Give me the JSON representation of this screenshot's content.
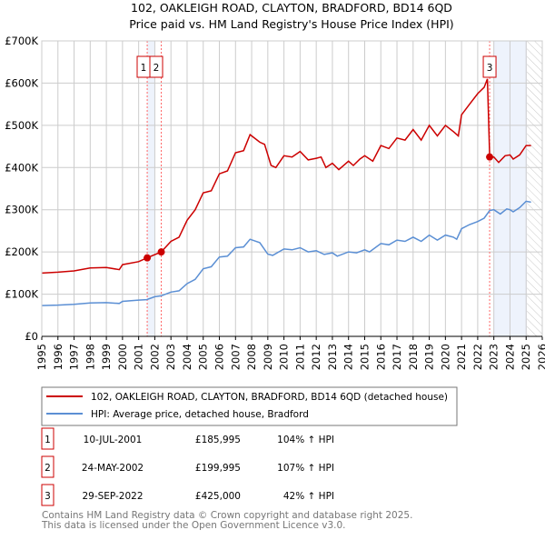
{
  "chart_data": {
    "type": "line",
    "title": "102, OAKLEIGH ROAD, CLAYTON, BRADFORD, BD14 6QD",
    "subtitle": "Price paid vs. HM Land Registry's House Price Index (HPI)",
    "xlim": [
      1995,
      2026
    ],
    "ylim": [
      0,
      700000
    ],
    "x_ticks": [
      "1995",
      "1996",
      "1997",
      "1998",
      "1999",
      "2000",
      "2001",
      "2002",
      "2003",
      "2004",
      "2005",
      "2006",
      "2007",
      "2008",
      "2009",
      "2010",
      "2011",
      "2012",
      "2013",
      "2014",
      "2015",
      "2016",
      "2017",
      "2018",
      "2019",
      "2020",
      "2021",
      "2022",
      "2023",
      "2024",
      "2025",
      "2026"
    ],
    "y_ticks": [
      {
        "v": 0,
        "label": "£0"
      },
      {
        "v": 100000,
        "label": "£100K"
      },
      {
        "v": 200000,
        "label": "£200K"
      },
      {
        "v": 300000,
        "label": "£300K"
      },
      {
        "v": 400000,
        "label": "£400K"
      },
      {
        "v": 500000,
        "label": "£500K"
      },
      {
        "v": 600000,
        "label": "£600K"
      },
      {
        "v": 700000,
        "label": "£700K"
      }
    ],
    "grid": true,
    "legend_placement": "below",
    "colors": {
      "property": "#cc0000",
      "hpi": "#5b8fd4",
      "shade": "#eef3fc",
      "marker_line": "#ff6666"
    },
    "series": [
      {
        "name": "102, OAKLEIGH ROAD, CLAYTON, BRADFORD, BD14 6QD (detached house)",
        "unit": "£K",
        "points": [
          [
            1995,
            150
          ],
          [
            1996,
            152
          ],
          [
            1997,
            155
          ],
          [
            1998,
            162
          ],
          [
            1999,
            163
          ],
          [
            1999.8,
            158
          ],
          [
            2000,
            170
          ],
          [
            2001,
            177
          ],
          [
            2001.53,
            186
          ],
          [
            2002.4,
            200
          ],
          [
            2003,
            225
          ],
          [
            2003.5,
            235
          ],
          [
            2004,
            275
          ],
          [
            2004.5,
            300
          ],
          [
            2005,
            340
          ],
          [
            2005.5,
            345
          ],
          [
            2006,
            385
          ],
          [
            2006.5,
            392
          ],
          [
            2007,
            435
          ],
          [
            2007.5,
            440
          ],
          [
            2007.9,
            478
          ],
          [
            2008.5,
            460
          ],
          [
            2008.8,
            455
          ],
          [
            2009.2,
            405
          ],
          [
            2009.5,
            400
          ],
          [
            2010,
            428
          ],
          [
            2010.5,
            425
          ],
          [
            2011,
            438
          ],
          [
            2011.5,
            418
          ],
          [
            2012,
            422
          ],
          [
            2012.3,
            425
          ],
          [
            2012.6,
            400
          ],
          [
            2013,
            410
          ],
          [
            2013.4,
            395
          ],
          [
            2014,
            415
          ],
          [
            2014.3,
            405
          ],
          [
            2014.7,
            420
          ],
          [
            2015,
            428
          ],
          [
            2015.5,
            415
          ],
          [
            2016,
            452
          ],
          [
            2016.5,
            445
          ],
          [
            2017,
            470
          ],
          [
            2017.5,
            465
          ],
          [
            2018,
            490
          ],
          [
            2018.5,
            465
          ],
          [
            2019,
            500
          ],
          [
            2019.5,
            475
          ],
          [
            2020,
            500
          ],
          [
            2020.5,
            485
          ],
          [
            2020.8,
            475
          ],
          [
            2021,
            525
          ],
          [
            2021.5,
            550
          ],
          [
            2022,
            575
          ],
          [
            2022.4,
            590
          ],
          [
            2022.6,
            610
          ],
          [
            2022.74,
            425
          ],
          [
            2023,
            425
          ],
          [
            2023.3,
            412
          ],
          [
            2023.7,
            428
          ],
          [
            2024,
            430
          ],
          [
            2024.2,
            420
          ],
          [
            2024.6,
            430
          ],
          [
            2025,
            452
          ],
          [
            2025.3,
            452
          ]
        ]
      },
      {
        "name": "HPI: Average price, detached house, Bradford",
        "unit": "£K",
        "points": [
          [
            1995,
            73
          ],
          [
            1996,
            74
          ],
          [
            1997,
            76
          ],
          [
            1998,
            79
          ],
          [
            1999,
            80
          ],
          [
            1999.8,
            78
          ],
          [
            2000,
            83
          ],
          [
            2001,
            86
          ],
          [
            2001.5,
            87
          ],
          [
            2002,
            94
          ],
          [
            2002.4,
            96
          ],
          [
            2003,
            105
          ],
          [
            2003.5,
            108
          ],
          [
            2004,
            125
          ],
          [
            2004.5,
            135
          ],
          [
            2005,
            160
          ],
          [
            2005.5,
            165
          ],
          [
            2006,
            188
          ],
          [
            2006.5,
            190
          ],
          [
            2007,
            210
          ],
          [
            2007.5,
            212
          ],
          [
            2007.9,
            230
          ],
          [
            2008.5,
            222
          ],
          [
            2009,
            195
          ],
          [
            2009.3,
            192
          ],
          [
            2010,
            207
          ],
          [
            2010.5,
            205
          ],
          [
            2011,
            210
          ],
          [
            2011.5,
            200
          ],
          [
            2012,
            203
          ],
          [
            2012.5,
            194
          ],
          [
            2013,
            198
          ],
          [
            2013.3,
            190
          ],
          [
            2014,
            200
          ],
          [
            2014.5,
            198
          ],
          [
            2015,
            205
          ],
          [
            2015.3,
            200
          ],
          [
            2016,
            220
          ],
          [
            2016.5,
            217
          ],
          [
            2017,
            228
          ],
          [
            2017.5,
            225
          ],
          [
            2018,
            235
          ],
          [
            2018.5,
            225
          ],
          [
            2019,
            240
          ],
          [
            2019.5,
            228
          ],
          [
            2020,
            240
          ],
          [
            2020.5,
            235
          ],
          [
            2020.7,
            230
          ],
          [
            2021,
            255
          ],
          [
            2021.5,
            265
          ],
          [
            2022,
            272
          ],
          [
            2022.4,
            280
          ],
          [
            2022.74,
            298
          ],
          [
            2023,
            300
          ],
          [
            2023.4,
            290
          ],
          [
            2023.8,
            302
          ],
          [
            2024,
            300
          ],
          [
            2024.2,
            295
          ],
          [
            2024.6,
            305
          ],
          [
            2025,
            320
          ],
          [
            2025.3,
            318
          ]
        ]
      }
    ],
    "shaded_ranges": [
      [
        2001.53,
        2002.0
      ],
      [
        2023.0,
        2025.05
      ]
    ],
    "hatched_range": [
      2025.05,
      2026
    ],
    "sales": [
      {
        "num": "1",
        "x": 2001.53,
        "price": 185995,
        "date": "10-JUL-2001",
        "price_label": "£185,995",
        "hpi_label": "104% ↑ HPI"
      },
      {
        "num": "2",
        "x": 2002.4,
        "price": 199995,
        "date": "24-MAY-2002",
        "price_label": "£199,995",
        "hpi_label": "107% ↑ HPI"
      },
      {
        "num": "3",
        "x": 2022.74,
        "price": 425000,
        "date": "29-SEP-2022",
        "price_label": "£425,000",
        "hpi_label": "42% ↑ HPI"
      }
    ]
  },
  "footer": {
    "line1": "Contains HM Land Registry data © Crown copyright and database right 2025.",
    "line2": "This data is licensed under the Open Government Licence v3.0."
  }
}
